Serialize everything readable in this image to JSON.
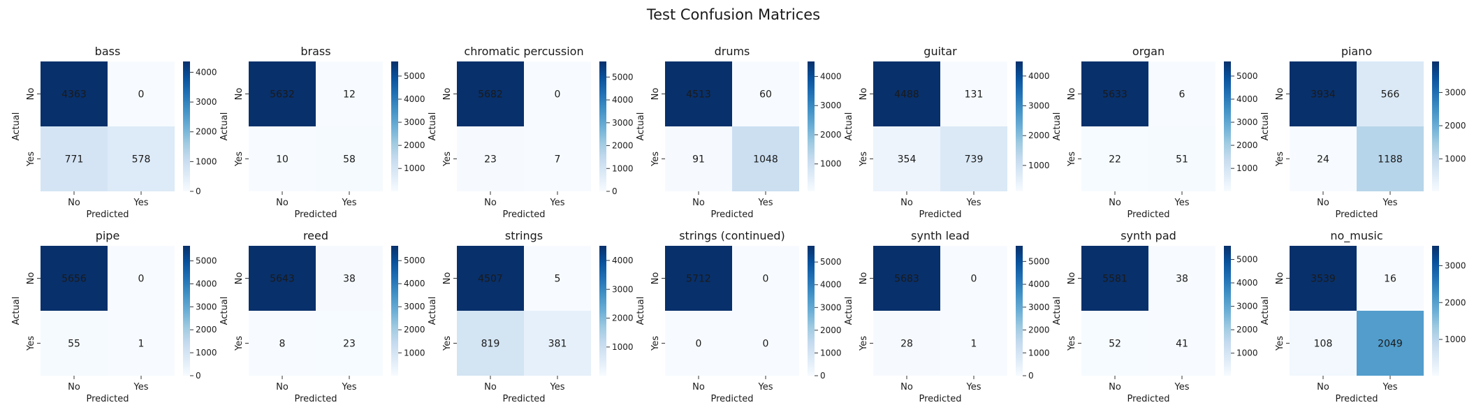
{
  "figure": {
    "title": "Test Confusion Matrices"
  },
  "chart_data": [
    {
      "type": "heatmap",
      "title": "bass",
      "rows": [
        "No",
        "Yes"
      ],
      "cols": [
        "No",
        "Yes"
      ],
      "values": [
        [
          4363,
          0
        ],
        [
          771,
          578
        ]
      ],
      "ylabel": "Actual",
      "xlabel": "Predicted",
      "colorbar_ticks": [
        0,
        1000,
        2000,
        3000,
        4000
      ]
    },
    {
      "type": "heatmap",
      "title": "brass",
      "rows": [
        "No",
        "Yes"
      ],
      "cols": [
        "No",
        "Yes"
      ],
      "values": [
        [
          5632,
          12
        ],
        [
          10,
          58
        ]
      ],
      "ylabel": "Actual",
      "xlabel": "Predicted",
      "colorbar_ticks": [
        1000,
        2000,
        3000,
        4000,
        5000
      ]
    },
    {
      "type": "heatmap",
      "title": "chromatic percussion",
      "rows": [
        "No",
        "Yes"
      ],
      "cols": [
        "No",
        "Yes"
      ],
      "values": [
        [
          5682,
          0
        ],
        [
          23,
          7
        ]
      ],
      "ylabel": "Actual",
      "xlabel": "Predicted",
      "colorbar_ticks": [
        0,
        1000,
        2000,
        3000,
        4000,
        5000
      ]
    },
    {
      "type": "heatmap",
      "title": "drums",
      "rows": [
        "No",
        "Yes"
      ],
      "cols": [
        "No",
        "Yes"
      ],
      "values": [
        [
          4513,
          60
        ],
        [
          91,
          1048
        ]
      ],
      "ylabel": "Actual",
      "xlabel": "Predicted",
      "colorbar_ticks": [
        1000,
        2000,
        3000,
        4000
      ]
    },
    {
      "type": "heatmap",
      "title": "guitar",
      "rows": [
        "No",
        "Yes"
      ],
      "cols": [
        "No",
        "Yes"
      ],
      "values": [
        [
          4488,
          131
        ],
        [
          354,
          739
        ]
      ],
      "ylabel": "Actual",
      "xlabel": "Predicted",
      "colorbar_ticks": [
        1000,
        2000,
        3000,
        4000
      ]
    },
    {
      "type": "heatmap",
      "title": "organ",
      "rows": [
        "No",
        "Yes"
      ],
      "cols": [
        "No",
        "Yes"
      ],
      "values": [
        [
          5633,
          6
        ],
        [
          22,
          51
        ]
      ],
      "ylabel": "Actual",
      "xlabel": "Predicted",
      "colorbar_ticks": [
        1000,
        2000,
        3000,
        4000,
        5000
      ]
    },
    {
      "type": "heatmap",
      "title": "piano",
      "rows": [
        "No",
        "Yes"
      ],
      "cols": [
        "No",
        "Yes"
      ],
      "values": [
        [
          3934,
          566
        ],
        [
          24,
          1188
        ]
      ],
      "ylabel": "Actual",
      "xlabel": "Predicted",
      "colorbar_ticks": [
        1000,
        2000,
        3000
      ]
    },
    {
      "type": "heatmap",
      "title": "pipe",
      "rows": [
        "No",
        "Yes"
      ],
      "cols": [
        "No",
        "Yes"
      ],
      "values": [
        [
          5656,
          0
        ],
        [
          55,
          1
        ]
      ],
      "ylabel": "Actual",
      "xlabel": "Predicted",
      "colorbar_ticks": [
        0,
        1000,
        2000,
        3000,
        4000,
        5000
      ]
    },
    {
      "type": "heatmap",
      "title": "reed",
      "rows": [
        "No",
        "Yes"
      ],
      "cols": [
        "No",
        "Yes"
      ],
      "values": [
        [
          5643,
          38
        ],
        [
          8,
          23
        ]
      ],
      "ylabel": "Actual",
      "xlabel": "Predicted",
      "colorbar_ticks": [
        1000,
        2000,
        3000,
        4000,
        5000
      ]
    },
    {
      "type": "heatmap",
      "title": "strings",
      "rows": [
        "No",
        "Yes"
      ],
      "cols": [
        "No",
        "Yes"
      ],
      "values": [
        [
          4507,
          5
        ],
        [
          819,
          381
        ]
      ],
      "ylabel": "Actual",
      "xlabel": "Predicted",
      "colorbar_ticks": [
        1000,
        2000,
        3000,
        4000
      ]
    },
    {
      "type": "heatmap",
      "title": "strings (continued)",
      "rows": [
        "No",
        "Yes"
      ],
      "cols": [
        "No",
        "Yes"
      ],
      "values": [
        [
          5712,
          0
        ],
        [
          0,
          0
        ]
      ],
      "ylabel": "Actual",
      "xlabel": "Predicted",
      "colorbar_ticks": [
        0,
        1000,
        2000,
        3000,
        4000,
        5000
      ]
    },
    {
      "type": "heatmap",
      "title": "synth lead",
      "rows": [
        "No",
        "Yes"
      ],
      "cols": [
        "No",
        "Yes"
      ],
      "values": [
        [
          5683,
          0
        ],
        [
          28,
          1
        ]
      ],
      "ylabel": "Actual",
      "xlabel": "Predicted",
      "colorbar_ticks": [
        0,
        1000,
        2000,
        3000,
        4000,
        5000
      ]
    },
    {
      "type": "heatmap",
      "title": "synth pad",
      "rows": [
        "No",
        "Yes"
      ],
      "cols": [
        "No",
        "Yes"
      ],
      "values": [
        [
          5581,
          38
        ],
        [
          52,
          41
        ]
      ],
      "ylabel": "Actual",
      "xlabel": "Predicted",
      "colorbar_ticks": [
        1000,
        2000,
        3000,
        4000,
        5000
      ]
    },
    {
      "type": "heatmap",
      "title": "no_music",
      "rows": [
        "No",
        "Yes"
      ],
      "cols": [
        "No",
        "Yes"
      ],
      "values": [
        [
          3539,
          16
        ],
        [
          108,
          2049
        ]
      ],
      "ylabel": "Actual",
      "xlabel": "Predicted",
      "colorbar_ticks": [
        1000,
        2000,
        3000
      ]
    }
  ],
  "colormap": {
    "name": "Blues",
    "stops": [
      "#f7fbff",
      "#deebf7",
      "#c6dbef",
      "#9ecae1",
      "#6baed6",
      "#4292c6",
      "#2171b5",
      "#08519c",
      "#08306b"
    ]
  }
}
